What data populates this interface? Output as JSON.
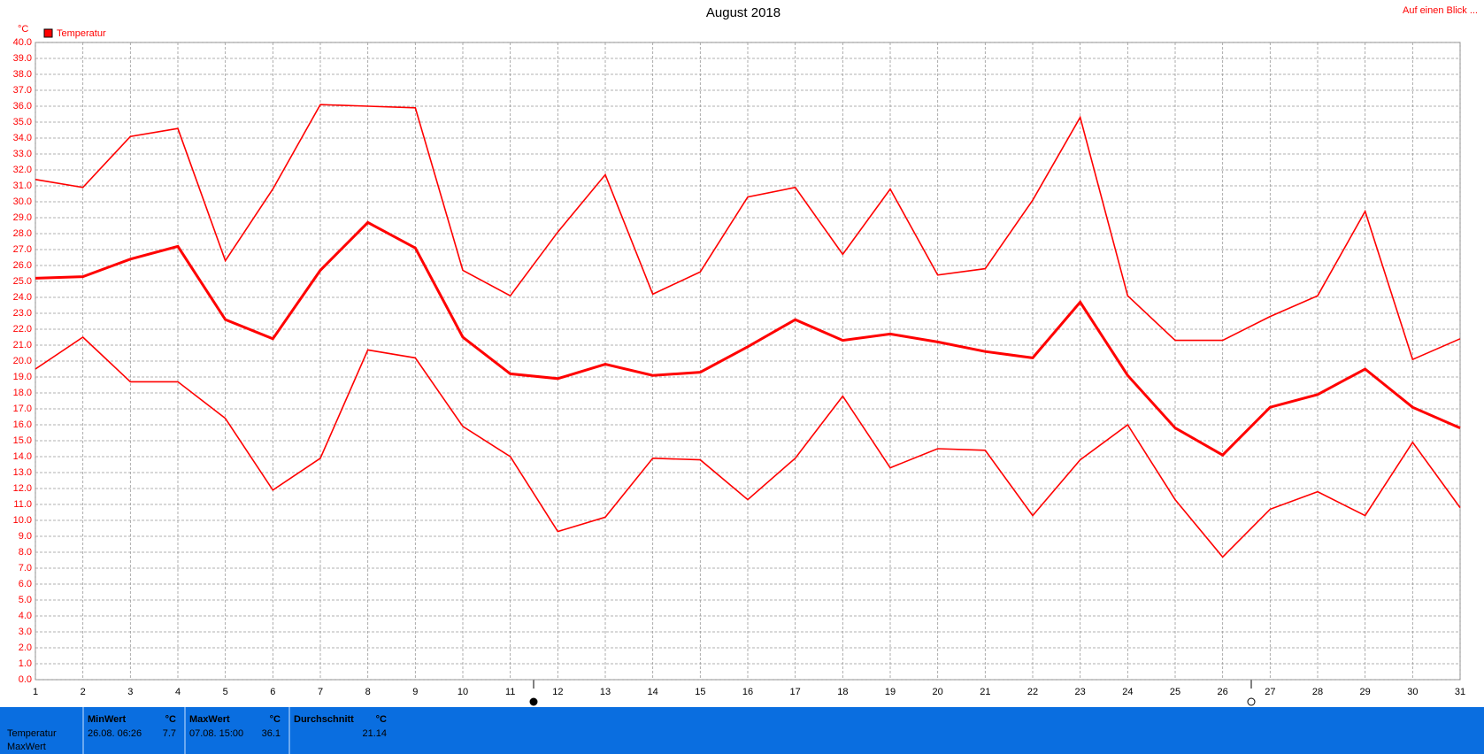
{
  "chart_data": {
    "type": "line",
    "title": "August 2018",
    "y_unit": "°C",
    "corner_link": "Auf einen Blick ...",
    "x": [
      1,
      2,
      3,
      4,
      5,
      6,
      7,
      8,
      9,
      10,
      11,
      12,
      13,
      14,
      15,
      16,
      17,
      18,
      19,
      20,
      21,
      22,
      23,
      24,
      25,
      26,
      27,
      28,
      29,
      30,
      31
    ],
    "xlim": [
      1,
      31
    ],
    "xticks": [
      1,
      2,
      3,
      4,
      5,
      6,
      7,
      8,
      9,
      10,
      11,
      12,
      13,
      14,
      15,
      16,
      17,
      18,
      19,
      20,
      21,
      22,
      23,
      24,
      25,
      26,
      27,
      28,
      29,
      30,
      31
    ],
    "ylim": [
      0,
      40
    ],
    "yticks": [
      {
        "value": 0,
        "label": "0.0"
      },
      {
        "value": 1,
        "label": "1.0"
      },
      {
        "value": 2,
        "label": "2.0"
      },
      {
        "value": 3,
        "label": "3.0"
      },
      {
        "value": 4,
        "label": "4.0"
      },
      {
        "value": 5,
        "label": "5.0"
      },
      {
        "value": 6,
        "label": "6.0"
      },
      {
        "value": 7,
        "label": "7.0"
      },
      {
        "value": 8,
        "label": "8.0"
      },
      {
        "value": 9,
        "label": "9.0"
      },
      {
        "value": 10,
        "label": "10.0"
      },
      {
        "value": 11,
        "label": "11.0"
      },
      {
        "value": 12,
        "label": "12.0"
      },
      {
        "value": 13,
        "label": "13.0"
      },
      {
        "value": 14,
        "label": "14.0"
      },
      {
        "value": 15,
        "label": "15.0"
      },
      {
        "value": 16,
        "label": "16.0"
      },
      {
        "value": 17,
        "label": "17.0"
      },
      {
        "value": 18,
        "label": "18.0"
      },
      {
        "value": 19,
        "label": "19.0"
      },
      {
        "value": 20,
        "label": "20.0"
      },
      {
        "value": 21,
        "label": "21.0"
      },
      {
        "value": 22,
        "label": "22.0"
      },
      {
        "value": 23,
        "label": "23.0"
      },
      {
        "value": 24,
        "label": "24.0"
      },
      {
        "value": 25,
        "label": "25.0"
      },
      {
        "value": 26,
        "label": "26.0"
      },
      {
        "value": 27,
        "label": "27.0"
      },
      {
        "value": 28,
        "label": "28.0"
      },
      {
        "value": 29,
        "label": "29.0"
      },
      {
        "value": 30,
        "label": "30.0"
      },
      {
        "value": 31,
        "label": "31.0"
      },
      {
        "value": 32,
        "label": "32.0"
      },
      {
        "value": 33,
        "label": "33.0"
      },
      {
        "value": 34,
        "label": "34.0"
      },
      {
        "value": 35,
        "label": "35.0"
      },
      {
        "value": 36,
        "label": "36.0"
      },
      {
        "value": 37,
        "label": "37.0"
      },
      {
        "value": 38,
        "label": "38.0"
      },
      {
        "value": 39,
        "label": "39.0"
      },
      {
        "value": 40,
        "label": "40.0"
      }
    ],
    "grid": true,
    "legend": "Temperatur",
    "legend_color": "#ff0000",
    "series": [
      {
        "color": "#ff0000",
        "line_width": 1.6,
        "values": [
          31.4,
          30.9,
          34.1,
          34.6,
          26.3,
          30.8,
          36.1,
          36.0,
          35.9,
          25.7,
          24.1,
          28.1,
          31.7,
          24.2,
          25.6,
          30.3,
          30.9,
          26.7,
          30.8,
          25.4,
          25.8,
          30.1,
          35.3,
          24.1,
          21.3,
          21.3,
          22.8,
          24.1,
          29.4,
          20.1,
          21.4
        ]
      },
      {
        "color": "#ff0000",
        "line_width": 3,
        "values": [
          25.2,
          25.3,
          26.4,
          27.2,
          22.6,
          21.4,
          25.7,
          28.7,
          27.1,
          21.5,
          19.2,
          18.9,
          19.8,
          19.1,
          19.3,
          20.9,
          22.6,
          21.3,
          21.7,
          21.2,
          20.6,
          20.2,
          23.7,
          19.1,
          15.8,
          14.1,
          17.1,
          17.9,
          19.5,
          17.1,
          15.8
        ]
      },
      {
        "color": "#ff0000",
        "line_width": 1.6,
        "values": [
          19.5,
          21.5,
          18.7,
          18.7,
          16.4,
          11.9,
          13.9,
          20.7,
          20.2,
          15.9,
          14.0,
          9.3,
          10.2,
          13.9,
          13.8,
          11.3,
          13.9,
          17.8,
          13.3,
          14.5,
          14.4,
          10.3,
          13.8,
          16.0,
          11.3,
          7.7,
          10.7,
          11.8,
          10.3,
          14.9,
          10.8
        ]
      }
    ]
  },
  "panel": {
    "row_labels": [
      "Temperatur",
      "MaxWert"
    ],
    "columns": [
      {
        "header": "MinWert",
        "unit": "°C",
        "time": "26.08. 06:26",
        "value": "7.7"
      },
      {
        "header": "MaxWert",
        "unit": "°C",
        "time": "07.08. 15:00",
        "value": "36.1"
      },
      {
        "header": "Durchschnitt",
        "unit": "°C",
        "value": "21.14"
      }
    ]
  }
}
